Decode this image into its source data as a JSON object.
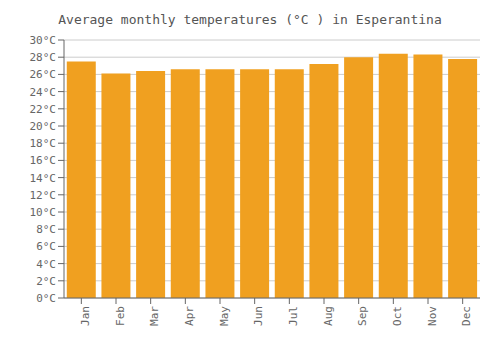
{
  "chart_data": {
    "type": "bar",
    "title": "Average monthly temperatures (°C ) in Esperantina",
    "categories": [
      "Jan",
      "Feb",
      "Mar",
      "Apr",
      "May",
      "Jun",
      "Jul",
      "Aug",
      "Sep",
      "Oct",
      "Nov",
      "Dec"
    ],
    "values": [
      27.5,
      26.1,
      26.4,
      26.6,
      26.6,
      26.6,
      26.6,
      27.2,
      28.0,
      28.4,
      28.3,
      27.8
    ],
    "color": "#F0A020",
    "ylim": [
      0,
      30
    ],
    "yticks": [
      {
        "value": 0,
        "label": "0°C"
      },
      {
        "value": 2,
        "label": "2°C"
      },
      {
        "value": 4,
        "label": "4°C"
      },
      {
        "value": 6,
        "label": "6°C"
      },
      {
        "value": 8,
        "label": "8°C"
      },
      {
        "value": 10,
        "label": "10°C"
      },
      {
        "value": 12,
        "label": "12°C"
      },
      {
        "value": 14,
        "label": "14°C"
      },
      {
        "value": 16,
        "label": "16°C"
      },
      {
        "value": 18,
        "label": "18°C"
      },
      {
        "value": 20,
        "label": "20°C"
      },
      {
        "value": 22,
        "label": "22°C"
      },
      {
        "value": 24,
        "label": "24°C"
      },
      {
        "value": 26,
        "label": "26°C"
      },
      {
        "value": 28,
        "label": "28°C"
      },
      {
        "value": 30,
        "label": "30°C"
      }
    ],
    "grid": true
  }
}
